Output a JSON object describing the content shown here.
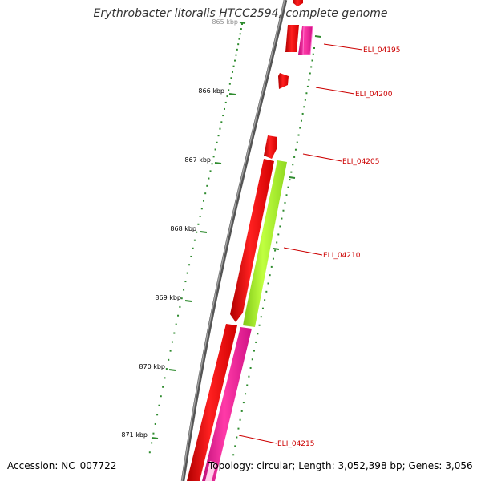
{
  "title": "Erythrobacter litoralis HTCC2594, complete genome",
  "footer": {
    "accession": "Accession: NC_007722",
    "topology": "Topology: circular; Length: 3,052,398 bp; Genes: 3,056"
  },
  "ticks": [
    {
      "label": "865 kbp"
    },
    {
      "label": "866 kbp"
    },
    {
      "label": "867 kbp"
    },
    {
      "label": "868 kbp"
    },
    {
      "label": "869 kbp"
    },
    {
      "label": "870 kbp"
    },
    {
      "label": "871 kbp"
    }
  ],
  "genes": [
    {
      "label": "ELI_04195"
    },
    {
      "label": "ELI_04200"
    },
    {
      "label": "ELI_04205"
    },
    {
      "label": "ELI_04210"
    },
    {
      "label": "ELI_04215"
    }
  ],
  "colors": {
    "backbone": "#808080",
    "tick": "#2e8b2e",
    "gene_red": "#ff0000",
    "gene_pink": "#ff1493",
    "gene_green": "#a6f020",
    "gene_label": "#cc0000"
  }
}
